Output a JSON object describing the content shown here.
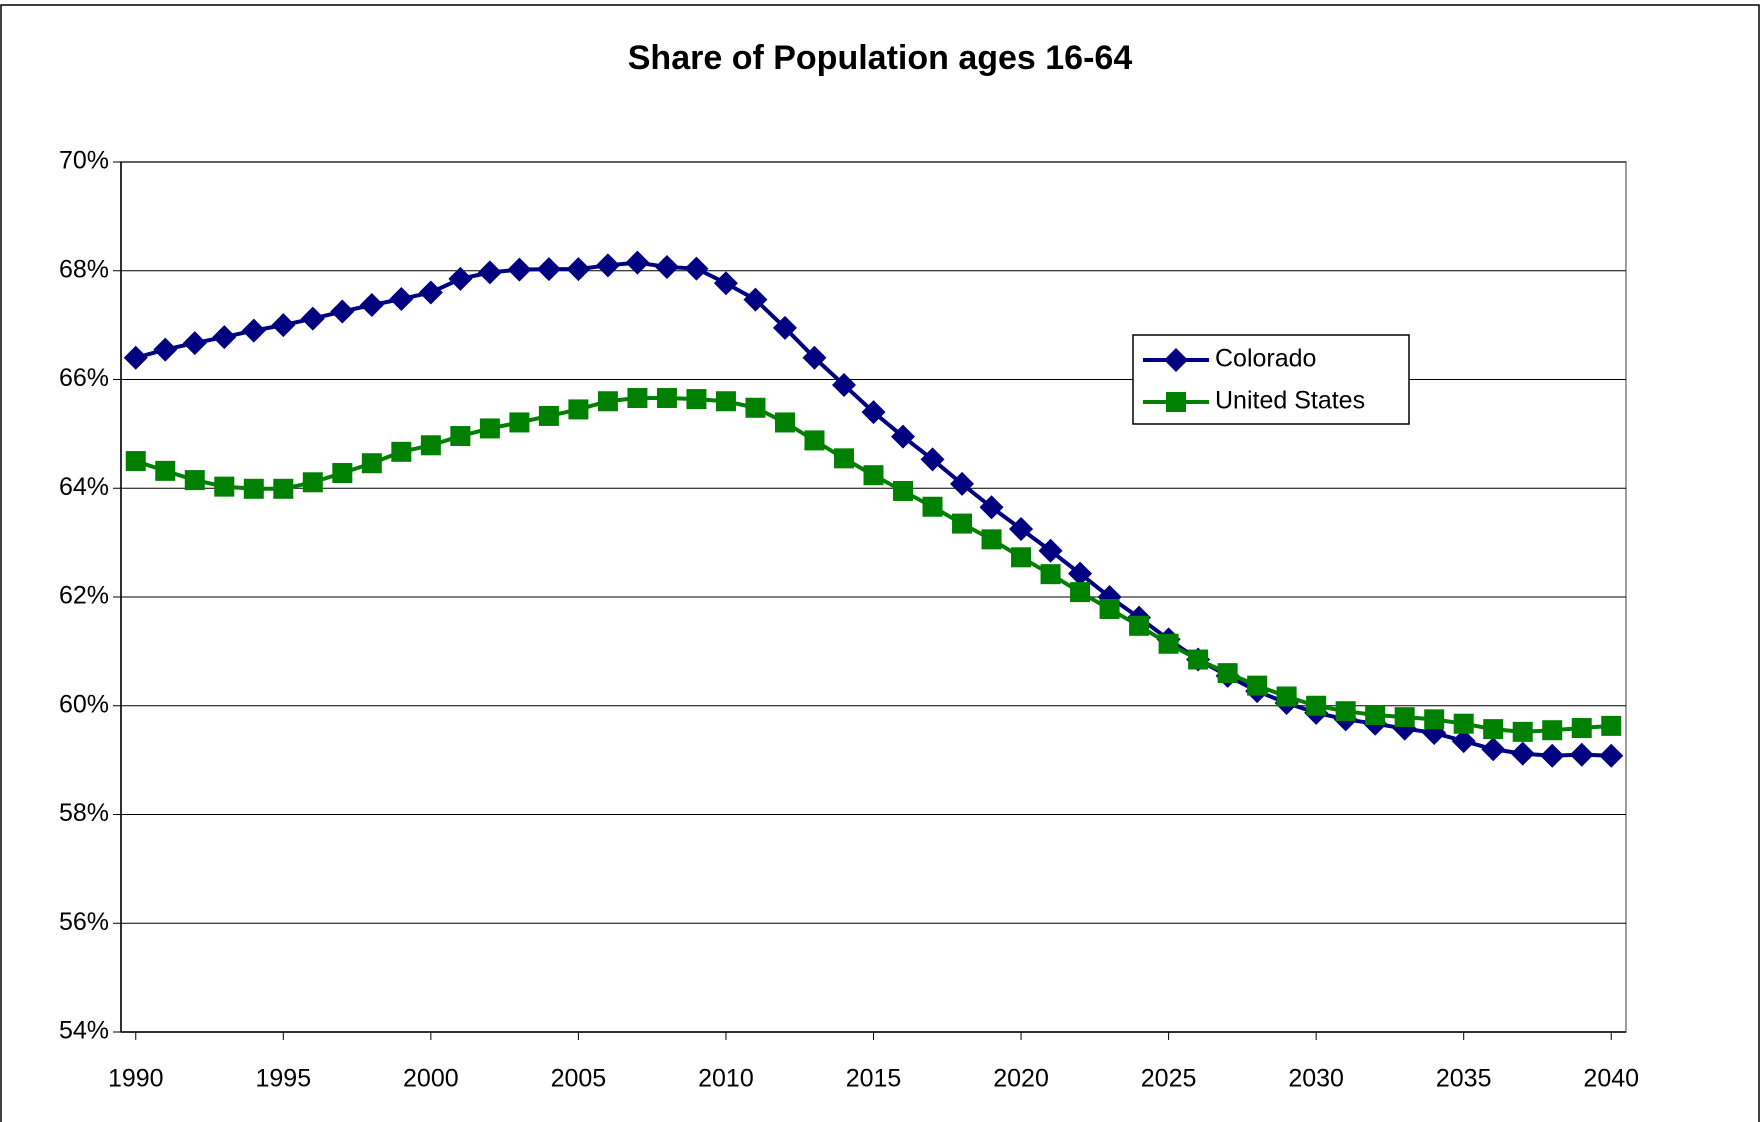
{
  "chart_data": {
    "type": "line",
    "title": "Share of Population ages 16-64",
    "x": [
      1990,
      1991,
      1992,
      1993,
      1994,
      1995,
      1996,
      1997,
      1998,
      1999,
      2000,
      2001,
      2002,
      2003,
      2004,
      2005,
      2006,
      2007,
      2008,
      2009,
      2010,
      2011,
      2012,
      2013,
      2014,
      2015,
      2016,
      2017,
      2018,
      2019,
      2020,
      2021,
      2022,
      2023,
      2024,
      2025,
      2026,
      2027,
      2028,
      2029,
      2030,
      2031,
      2032,
      2033,
      2034,
      2035,
      2036,
      2037,
      2038,
      2039,
      2040
    ],
    "series": [
      {
        "name": "Colorado",
        "color": "#000080",
        "marker": "diamond",
        "values": [
          66.4,
          66.55,
          66.67,
          66.78,
          66.9,
          67.0,
          67.12,
          67.25,
          67.37,
          67.48,
          67.6,
          67.85,
          67.97,
          68.02,
          68.03,
          68.03,
          68.1,
          68.15,
          68.07,
          68.04,
          67.77,
          67.47,
          66.95,
          66.4,
          65.9,
          65.4,
          64.95,
          64.53,
          64.08,
          63.65,
          63.25,
          62.85,
          62.43,
          62.0,
          61.62,
          61.22,
          60.85,
          60.55,
          60.27,
          60.05,
          59.87,
          59.75,
          59.67,
          59.58,
          59.5,
          59.35,
          59.2,
          59.12,
          59.08,
          59.1,
          59.08
        ]
      },
      {
        "name": "United States",
        "color": "#008000",
        "marker": "square",
        "values": [
          64.5,
          64.32,
          64.15,
          64.03,
          63.99,
          63.99,
          64.11,
          64.28,
          64.46,
          64.67,
          64.79,
          64.96,
          65.1,
          65.21,
          65.33,
          65.45,
          65.6,
          65.66,
          65.66,
          65.64,
          65.6,
          65.48,
          65.21,
          64.88,
          64.55,
          64.24,
          63.95,
          63.66,
          63.35,
          63.06,
          62.73,
          62.42,
          62.09,
          61.78,
          61.47,
          61.14,
          60.85,
          60.6,
          60.37,
          60.17,
          60.0,
          59.9,
          59.83,
          59.79,
          59.75,
          59.67,
          59.57,
          59.52,
          59.55,
          59.59,
          59.63
        ]
      }
    ],
    "xlim": [
      1989.5,
      2040.5
    ],
    "xticks": [
      1990,
      1995,
      2000,
      2005,
      2010,
      2015,
      2020,
      2025,
      2030,
      2035,
      2040
    ],
    "ylim": [
      54,
      70
    ],
    "yticks": [
      {
        "value": 54,
        "label": "54%"
      },
      {
        "value": 56,
        "label": "56%"
      },
      {
        "value": 58,
        "label": "58%"
      },
      {
        "value": 60,
        "label": "60%"
      },
      {
        "value": 62,
        "label": "62%"
      },
      {
        "value": 64,
        "label": "64%"
      },
      {
        "value": 66,
        "label": "66%"
      },
      {
        "value": 68,
        "label": "68%"
      },
      {
        "value": 70,
        "label": "70%"
      }
    ],
    "grid": true,
    "legend": "upper right"
  }
}
